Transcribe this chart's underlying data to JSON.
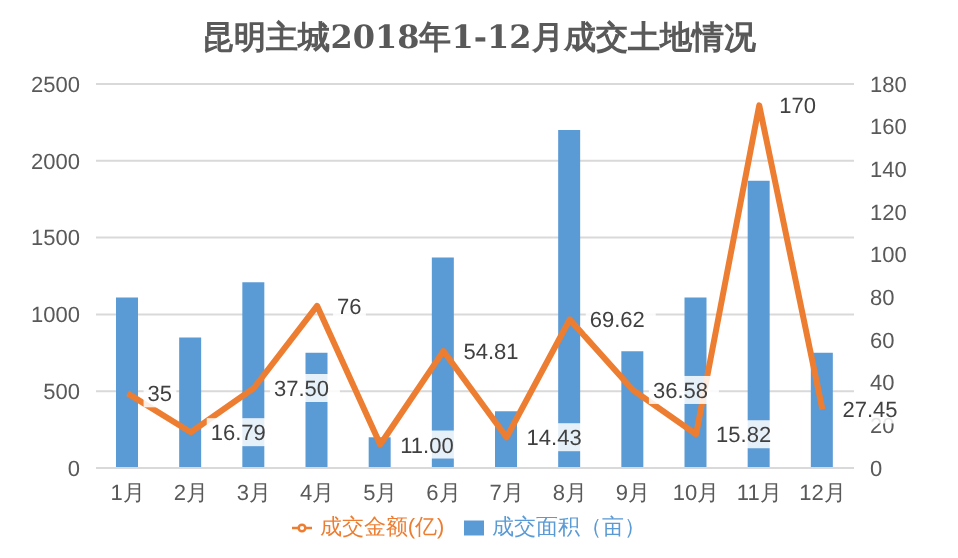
{
  "chart_data": {
    "type": "bar",
    "title": "昆明主城2018年1-12月成交土地情况",
    "categories": [
      "1月",
      "2月",
      "3月",
      "4月",
      "5月",
      "6月",
      "7月",
      "8月",
      "9月",
      "10月",
      "11月",
      "12月"
    ],
    "series": [
      {
        "name": "成交面积（亩）",
        "color": "#5b9bd5",
        "values": [
          1110,
          850,
          1210,
          750,
          200,
          1370,
          370,
          2200,
          760,
          1110,
          1870,
          750
        ]
      },
      {
        "name": "成交金额(亿)",
        "type": "line",
        "axis": "y2",
        "color": "#ed7d31",
        "marker": "none",
        "values": [
          35,
          16.79,
          37.5,
          76,
          11,
          54.81,
          14.43,
          69.62,
          36.58,
          15.82,
          170,
          27.45
        ],
        "value_labels": [
          "35",
          "16.79",
          "37.50",
          "76",
          "11.00",
          "54.81",
          "14.43",
          "69.62",
          "36.58",
          "15.82",
          "170",
          "27.45"
        ]
      }
    ],
    "ylim": [
      0,
      2500
    ],
    "yticks": [
      0,
      500,
      1000,
      1500,
      2000,
      2500
    ],
    "y2lim": [
      0,
      180
    ],
    "y2ticks": [
      0,
      20,
      40,
      60,
      80,
      100,
      120,
      140,
      160,
      180
    ],
    "grid": "y",
    "legend": "bottom"
  }
}
